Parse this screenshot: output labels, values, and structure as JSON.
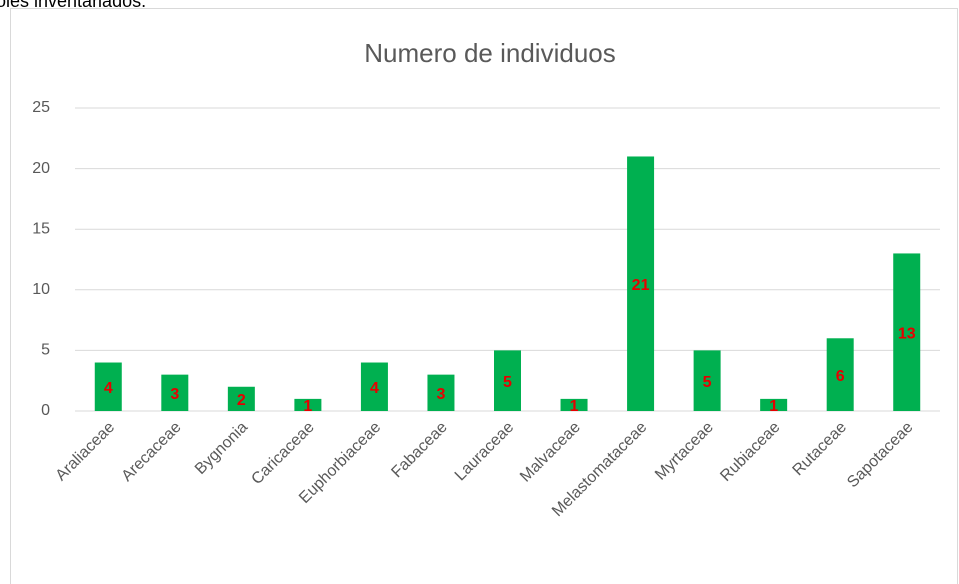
{
  "caption": "oles inventariados.",
  "chart_data": {
    "type": "bar",
    "title": "Numero de individuos",
    "categories": [
      "Araliaceae",
      "Arecaceae",
      "Bygnonia",
      "Caricaceae",
      "Euphorbiaceae",
      "Fabaceae",
      "Lauraceae",
      "Malvaceae",
      "Melastomataceae",
      "Myrtaceae",
      "Rubiaceae",
      "Rutaceae",
      "Sapotaceae"
    ],
    "values": [
      4,
      3,
      2,
      1,
      4,
      3,
      5,
      1,
      21,
      5,
      1,
      6,
      13
    ],
    "color": "#00b050",
    "label_color": "#e60000",
    "ylim": [
      0,
      25
    ],
    "yticks": [
      0,
      5,
      10,
      15,
      20,
      25
    ],
    "grid": true
  }
}
